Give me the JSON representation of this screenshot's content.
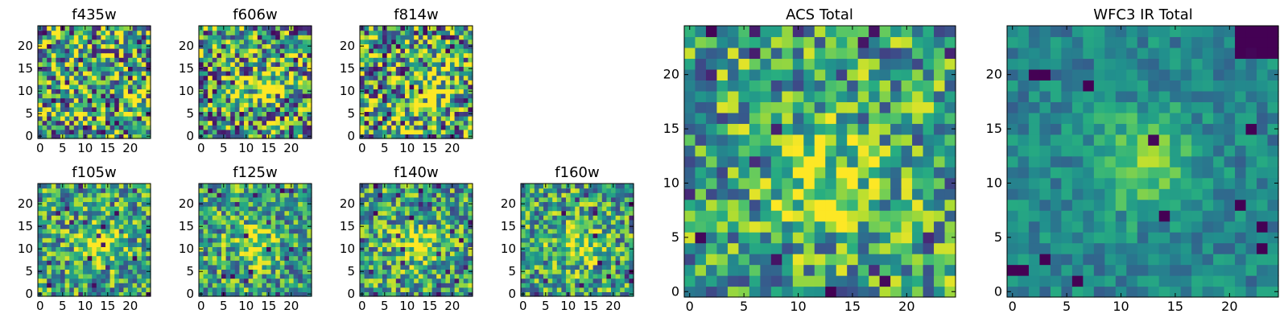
{
  "figure": {
    "description_colormap": "viridis",
    "colors": {
      "low": "#440154",
      "mid": "#21908d",
      "high": "#fde725"
    }
  },
  "chart_data": [
    {
      "type": "heatmap",
      "title": "f435w",
      "xlim": [
        0,
        25
      ],
      "ylim": [
        0,
        25
      ],
      "xticks": [
        "0",
        "5",
        "10",
        "15",
        "20"
      ],
      "yticks": [
        "0",
        "5",
        "10",
        "15",
        "20"
      ],
      "grid_size": 25,
      "bright_center": null,
      "noise_level": "high",
      "seed": 11
    },
    {
      "type": "heatmap",
      "title": "f606w",
      "xlim": [
        0,
        25
      ],
      "ylim": [
        0,
        25
      ],
      "xticks": [
        "0",
        "5",
        "10",
        "15",
        "20"
      ],
      "yticks": [
        "0",
        "5",
        "10",
        "15",
        "20"
      ],
      "grid_size": 25,
      "bright_center": [
        13,
        11
      ],
      "noise_level": "high",
      "seed": 23
    },
    {
      "type": "heatmap",
      "title": "f814w",
      "xlim": [
        0,
        25
      ],
      "ylim": [
        0,
        25
      ],
      "xticks": [
        "0",
        "5",
        "10",
        "15",
        "20"
      ],
      "yticks": [
        "0",
        "5",
        "10",
        "15",
        "20"
      ],
      "grid_size": 25,
      "bright_center": [
        14,
        10
      ],
      "noise_level": "high",
      "seed": 37
    },
    {
      "type": "heatmap",
      "title": "f105w",
      "xlim": [
        0,
        25
      ],
      "ylim": [
        0,
        25
      ],
      "xticks": [
        "0",
        "5",
        "10",
        "15",
        "20"
      ],
      "yticks": [
        "0",
        "5",
        "10",
        "15",
        "20"
      ],
      "grid_size": 25,
      "bright_center": [
        13,
        11
      ],
      "noise_level": "medium",
      "seed": 41
    },
    {
      "type": "heatmap",
      "title": "f125w",
      "xlim": [
        0,
        25
      ],
      "ylim": [
        0,
        25
      ],
      "xticks": [
        "0",
        "5",
        "10",
        "15",
        "20"
      ],
      "yticks": [
        "0",
        "5",
        "10",
        "15",
        "20"
      ],
      "grid_size": 25,
      "bright_center": [
        12,
        11
      ],
      "noise_level": "medium",
      "seed": 53
    },
    {
      "type": "heatmap",
      "title": "f140w",
      "xlim": [
        0,
        25
      ],
      "ylim": [
        0,
        25
      ],
      "xticks": [
        "0",
        "5",
        "10",
        "15",
        "20"
      ],
      "yticks": [
        "0",
        "5",
        "10",
        "15",
        "20"
      ],
      "grid_size": 25,
      "bright_center": [
        12,
        11
      ],
      "noise_level": "medium",
      "seed": 67
    },
    {
      "type": "heatmap",
      "title": "f160w",
      "xlim": [
        0,
        25
      ],
      "ylim": [
        0,
        25
      ],
      "xticks": [
        "0",
        "5",
        "10",
        "15",
        "20"
      ],
      "yticks": [
        "0",
        "5",
        "10",
        "15",
        "20"
      ],
      "grid_size": 25,
      "bright_center": [
        12,
        11
      ],
      "noise_level": "medium",
      "seed": 79
    },
    {
      "type": "heatmap",
      "title": "ACS Total",
      "xlim": [
        0,
        25
      ],
      "ylim": [
        0,
        25
      ],
      "xticks": [
        "0",
        "5",
        "10",
        "15",
        "20"
      ],
      "yticks": [
        "0",
        "5",
        "10",
        "15",
        "20"
      ],
      "grid_size": 25,
      "bright_center": [
        13,
        10
      ],
      "noise_level": "medium",
      "seed": 97
    },
    {
      "type": "heatmap",
      "title": "WFC3 IR Total",
      "xlim": [
        0,
        25
      ],
      "ylim": [
        0,
        25
      ],
      "xticks": [
        "0",
        "5",
        "10",
        "15",
        "20"
      ],
      "yticks": [
        "0",
        "5",
        "10",
        "15",
        "20"
      ],
      "grid_size": 25,
      "bright_center": [
        12,
        12
      ],
      "noise_level": "low",
      "seed": 113
    }
  ]
}
